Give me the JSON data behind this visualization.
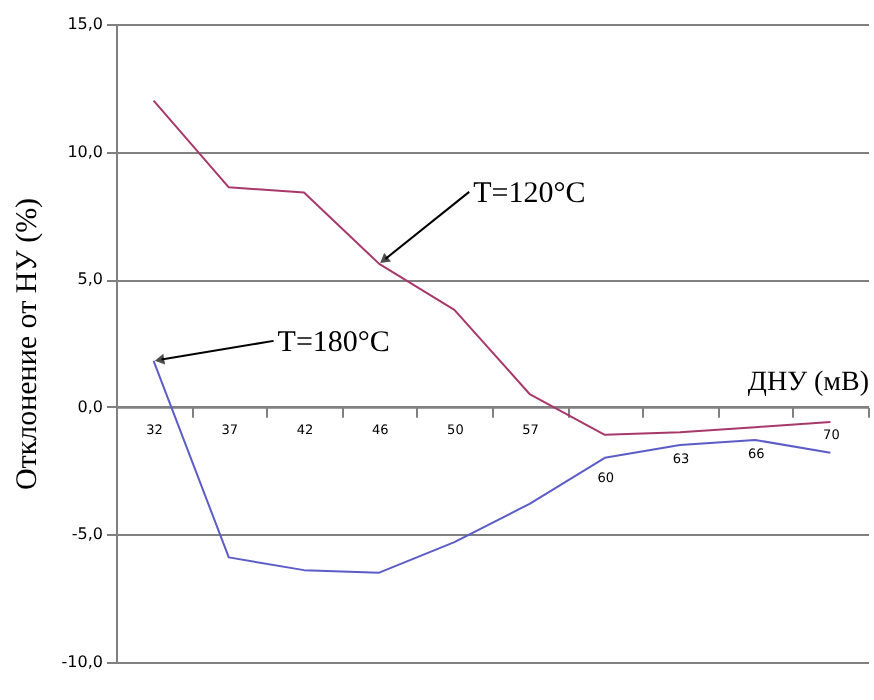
{
  "chart_data": {
    "type": "line",
    "ylabel": "Отклонение от НУ (%)",
    "xlabel": "ДНУ (мВ)",
    "categories": [
      "32",
      "37",
      "42",
      "46",
      "50",
      "57",
      "60",
      "63",
      "66",
      "70"
    ],
    "series": [
      {
        "color": "#a8386a",
        "values": [
          12.0,
          8.6,
          8.4,
          5.6,
          3.8,
          0.5,
          -1.1,
          -1.0,
          -0.8,
          -0.6
        ]
      },
      {
        "color": "#5c5cc8",
        "values": [
          1.8,
          -5.9,
          -6.4,
          -6.5,
          -5.3,
          -3.8,
          -2.0,
          -1.5,
          -1.3,
          -1.8
        ]
      }
    ],
    "ylim": [
      -10,
      15
    ],
    "yticks": [
      {
        "value": -10,
        "label": "-10,0"
      },
      {
        "value": -5,
        "label": "-5,0"
      },
      {
        "value": 0,
        "label": "0,0"
      },
      {
        "value": 5,
        "label": "5,0"
      },
      {
        "value": 10,
        "label": "10,0"
      },
      {
        "value": 15,
        "label": "15,0"
      }
    ],
    "grid": "y",
    "marker": "none",
    "line_style": "solid",
    "annotations": [
      {
        "text": "T=120°C",
        "x": "46",
        "y": 5.6
      },
      {
        "text": "T=180°C",
        "x": "32",
        "y": 1.8
      }
    ]
  }
}
